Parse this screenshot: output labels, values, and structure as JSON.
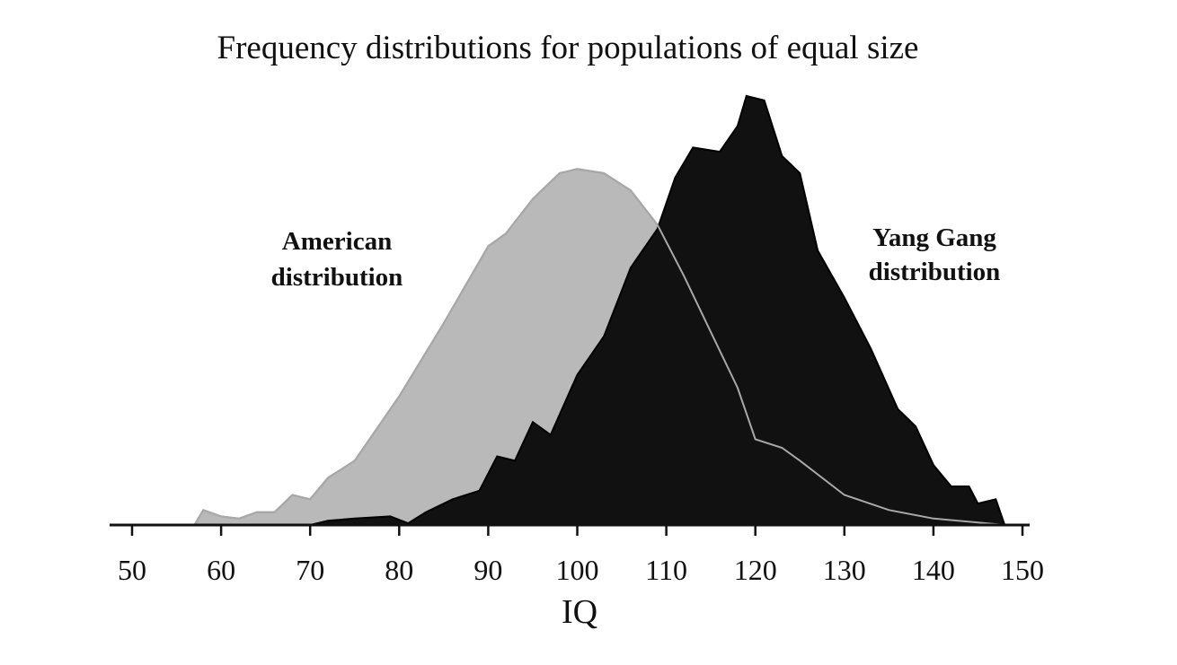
{
  "chart_data": {
    "type": "area",
    "title": "Frequency distributions for populations of equal size",
    "xlabel": "IQ",
    "ylabel": "",
    "xlim": [
      49,
      151
    ],
    "ylim": [
      0,
      100
    ],
    "xticks": [
      50,
      60,
      70,
      80,
      90,
      100,
      110,
      120,
      130,
      140,
      150
    ],
    "grid": false,
    "y_axis_shown": false,
    "series": [
      {
        "name": "American distribution",
        "label_lines": [
          "American",
          "distribution"
        ],
        "color": "#b9b9b9",
        "x": [
          57,
          58,
          60,
          62,
          64,
          66,
          68,
          70,
          72,
          75,
          80,
          85,
          90,
          92,
          95,
          98,
          100,
          103,
          106,
          109,
          112,
          115,
          118,
          120,
          123,
          125,
          130,
          135,
          140,
          146,
          148
        ],
        "y": [
          0,
          3.5,
          2,
          1.5,
          3,
          3,
          7,
          6,
          11,
          15,
          30,
          47,
          65,
          68,
          76,
          82,
          83,
          82,
          78,
          70,
          58,
          45,
          32,
          20,
          18,
          15,
          7,
          3.5,
          1.5,
          0.4,
          0
        ]
      },
      {
        "name": "Yang Gang distribution",
        "label_lines": [
          "Yang Gang",
          "distribution"
        ],
        "color": "#111111",
        "x": [
          49,
          70,
          72,
          75,
          79,
          81,
          83,
          86,
          89,
          91,
          93,
          95,
          97,
          100,
          103,
          106,
          109,
          111,
          113,
          116,
          118,
          119,
          121,
          123,
          125,
          127,
          130,
          133,
          136,
          138,
          140,
          142,
          144,
          145,
          147,
          148
        ],
        "y": [
          0,
          0,
          1,
          1.5,
          2,
          0.4,
          3,
          6,
          8,
          16,
          15,
          24,
          21,
          35,
          44,
          60,
          69,
          81,
          88,
          87,
          93,
          100,
          99,
          86,
          82,
          64,
          53,
          41,
          27,
          23,
          14,
          9,
          9,
          5,
          6,
          0
        ]
      }
    ]
  }
}
